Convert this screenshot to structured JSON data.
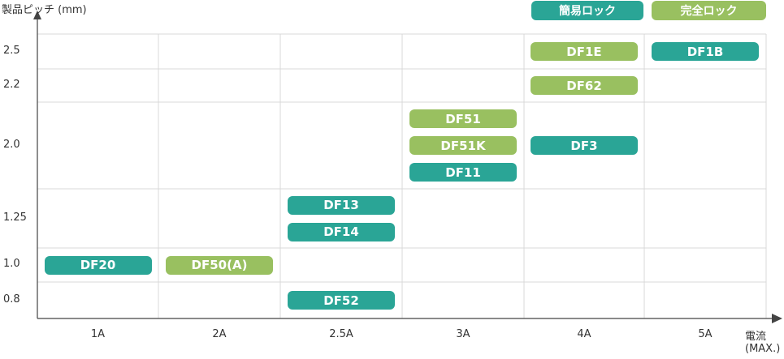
{
  "colors": {
    "teal": "#2aa596",
    "green": "#99c060",
    "grid": "#d9d9d9",
    "axis": "#444444"
  },
  "chart_data": {
    "type": "table",
    "ylabel": "製品ピッチ (mm)",
    "xlabel_line1": "電流",
    "xlabel_line2": "(MAX.)",
    "x_categories": [
      "1A",
      "2A",
      "2.5A",
      "3A",
      "4A",
      "5A"
    ],
    "y_categories": [
      "2.5",
      "2.2",
      "2.0",
      "1.25",
      "1.0",
      "0.8"
    ],
    "legend": [
      {
        "label": "簡易ロック",
        "color": "teal"
      },
      {
        "label": "完全ロック",
        "color": "green"
      }
    ],
    "items": [
      {
        "label": "DF1E",
        "x": "4A",
        "y": "2.5",
        "color": "green"
      },
      {
        "label": "DF1B",
        "x": "5A",
        "y": "2.5",
        "color": "teal"
      },
      {
        "label": "DF62",
        "x": "4A",
        "y": "2.2",
        "color": "green"
      },
      {
        "label": "DF51",
        "x": "3A",
        "y": "2.0",
        "color": "green"
      },
      {
        "label": "DF51K",
        "x": "3A",
        "y": "2.0",
        "color": "green"
      },
      {
        "label": "DF11",
        "x": "3A",
        "y": "2.0",
        "color": "teal"
      },
      {
        "label": "DF3",
        "x": "4A",
        "y": "2.0",
        "color": "teal"
      },
      {
        "label": "DF13",
        "x": "2.5A",
        "y": "1.25",
        "color": "teal"
      },
      {
        "label": "DF14",
        "x": "2.5A",
        "y": "1.25",
        "color": "teal"
      },
      {
        "label": "DF20",
        "x": "1A",
        "y": "1.0",
        "color": "teal"
      },
      {
        "label": "DF50(A)",
        "x": "2A",
        "y": "1.0",
        "color": "green"
      },
      {
        "label": "DF52",
        "x": "2.5A",
        "y": "0.8",
        "color": "teal"
      }
    ]
  }
}
